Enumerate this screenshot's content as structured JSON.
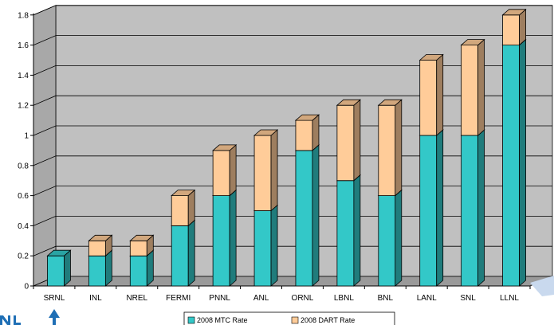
{
  "chart_data": {
    "type": "bar",
    "stacked": true,
    "three_d": true,
    "categories": [
      "SRNL",
      "INL",
      "NREL",
      "FERMI",
      "PNNL",
      "ANL",
      "ORNL",
      "LBNL",
      "BNL",
      "LANL",
      "SNL",
      "LLNL"
    ],
    "series": [
      {
        "name": "2008 MTC Rate",
        "color": "#33C8C8",
        "values": [
          0.2,
          0.2,
          0.2,
          0.4,
          0.6,
          0.5,
          0.9,
          0.7,
          0.6,
          1.0,
          1.0,
          1.6
        ]
      },
      {
        "name": "2008 DART Rate",
        "color": "#FFCC99",
        "values": [
          0.0,
          0.1,
          0.1,
          0.2,
          0.3,
          0.5,
          0.2,
          0.5,
          0.6,
          0.5,
          0.6,
          0.2
        ]
      }
    ],
    "ylim": [
      0,
      1.8
    ],
    "yticks": [
      "0",
      "0.2",
      "0.4",
      "0.6",
      "0.8",
      "1",
      "1.2",
      "1.4",
      "1.6",
      "1.8"
    ],
    "grid": true,
    "legend_position": "bottom",
    "plot_background": "#C0C0C0"
  }
}
